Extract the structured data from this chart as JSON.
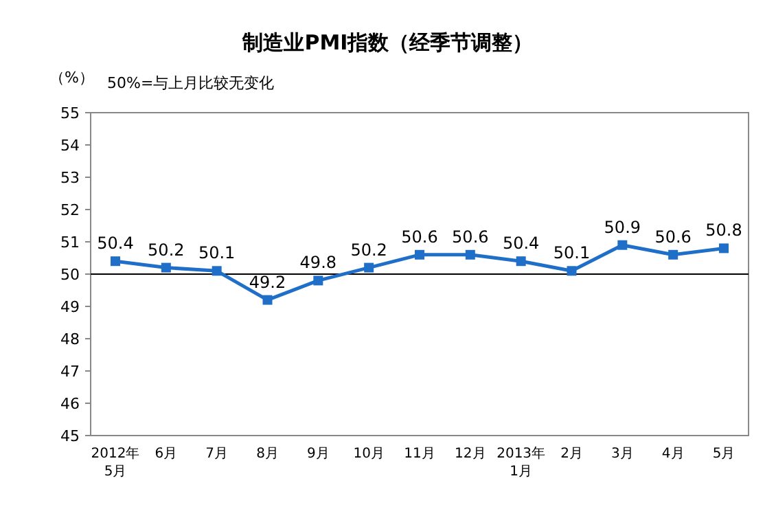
{
  "chart_data": {
    "type": "line",
    "title": "制造业PMI指数（经季节调整）",
    "ylabel": "（%）",
    "annotations": [
      "50%=与上月比较无变化"
    ],
    "categories": [
      "2012年\n5月",
      "6月",
      "7月",
      "8月",
      "9月",
      "10月",
      "11月",
      "12月",
      "2013年\n1月",
      "2月",
      "3月",
      "4月",
      "5月"
    ],
    "series": [
      {
        "color": "#1f6fc8",
        "values": [
          50.4,
          50.2,
          50.1,
          49.2,
          49.8,
          50.2,
          50.6,
          50.6,
          50.4,
          50.1,
          50.9,
          50.6,
          50.8
        ]
      }
    ],
    "ylim": [
      45,
      55
    ],
    "yticks": [
      45,
      46,
      47,
      48,
      49,
      50,
      51,
      52,
      53,
      54,
      55
    ],
    "marker": "square",
    "line_style": "solid",
    "data_labels": true,
    "grid": false,
    "ref_lines": [
      {
        "axis": "y",
        "value": 50,
        "color": "#000000"
      }
    ]
  }
}
